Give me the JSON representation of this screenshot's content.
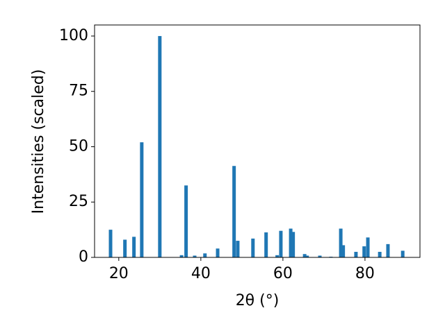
{
  "chart_data": {
    "type": "bar",
    "x": [
      18.0,
      21.5,
      23.7,
      25.6,
      30.0,
      35.3,
      36.4,
      38.5,
      41.0,
      44.1,
      48.1,
      49.0,
      52.7,
      55.9,
      58.6,
      59.5,
      61.9,
      62.5,
      65.3,
      65.9,
      69.0,
      71.7,
      74.1,
      74.7,
      77.8,
      79.8,
      80.7,
      83.6,
      85.6,
      89.2
    ],
    "values": [
      12.5,
      8,
      9.3,
      52,
      100,
      1,
      32.5,
      0.8,
      1.8,
      4,
      41.3,
      7.5,
      8.5,
      11.3,
      1,
      12,
      13,
      11.5,
      1.5,
      0.8,
      0.8,
      0.3,
      13,
      5.5,
      2.5,
      5,
      9,
      2.5,
      6,
      3
    ],
    "color": "#1f77b4",
    "xlabel": "2θ (°)",
    "ylabel": "Intensities (scaled)",
    "xlim": [
      14.1,
      93.4
    ],
    "xticks": [
      20,
      40,
      60,
      80
    ],
    "ylim": [
      0,
      105
    ],
    "yticks": [
      0,
      25,
      50,
      75,
      100
    ]
  }
}
